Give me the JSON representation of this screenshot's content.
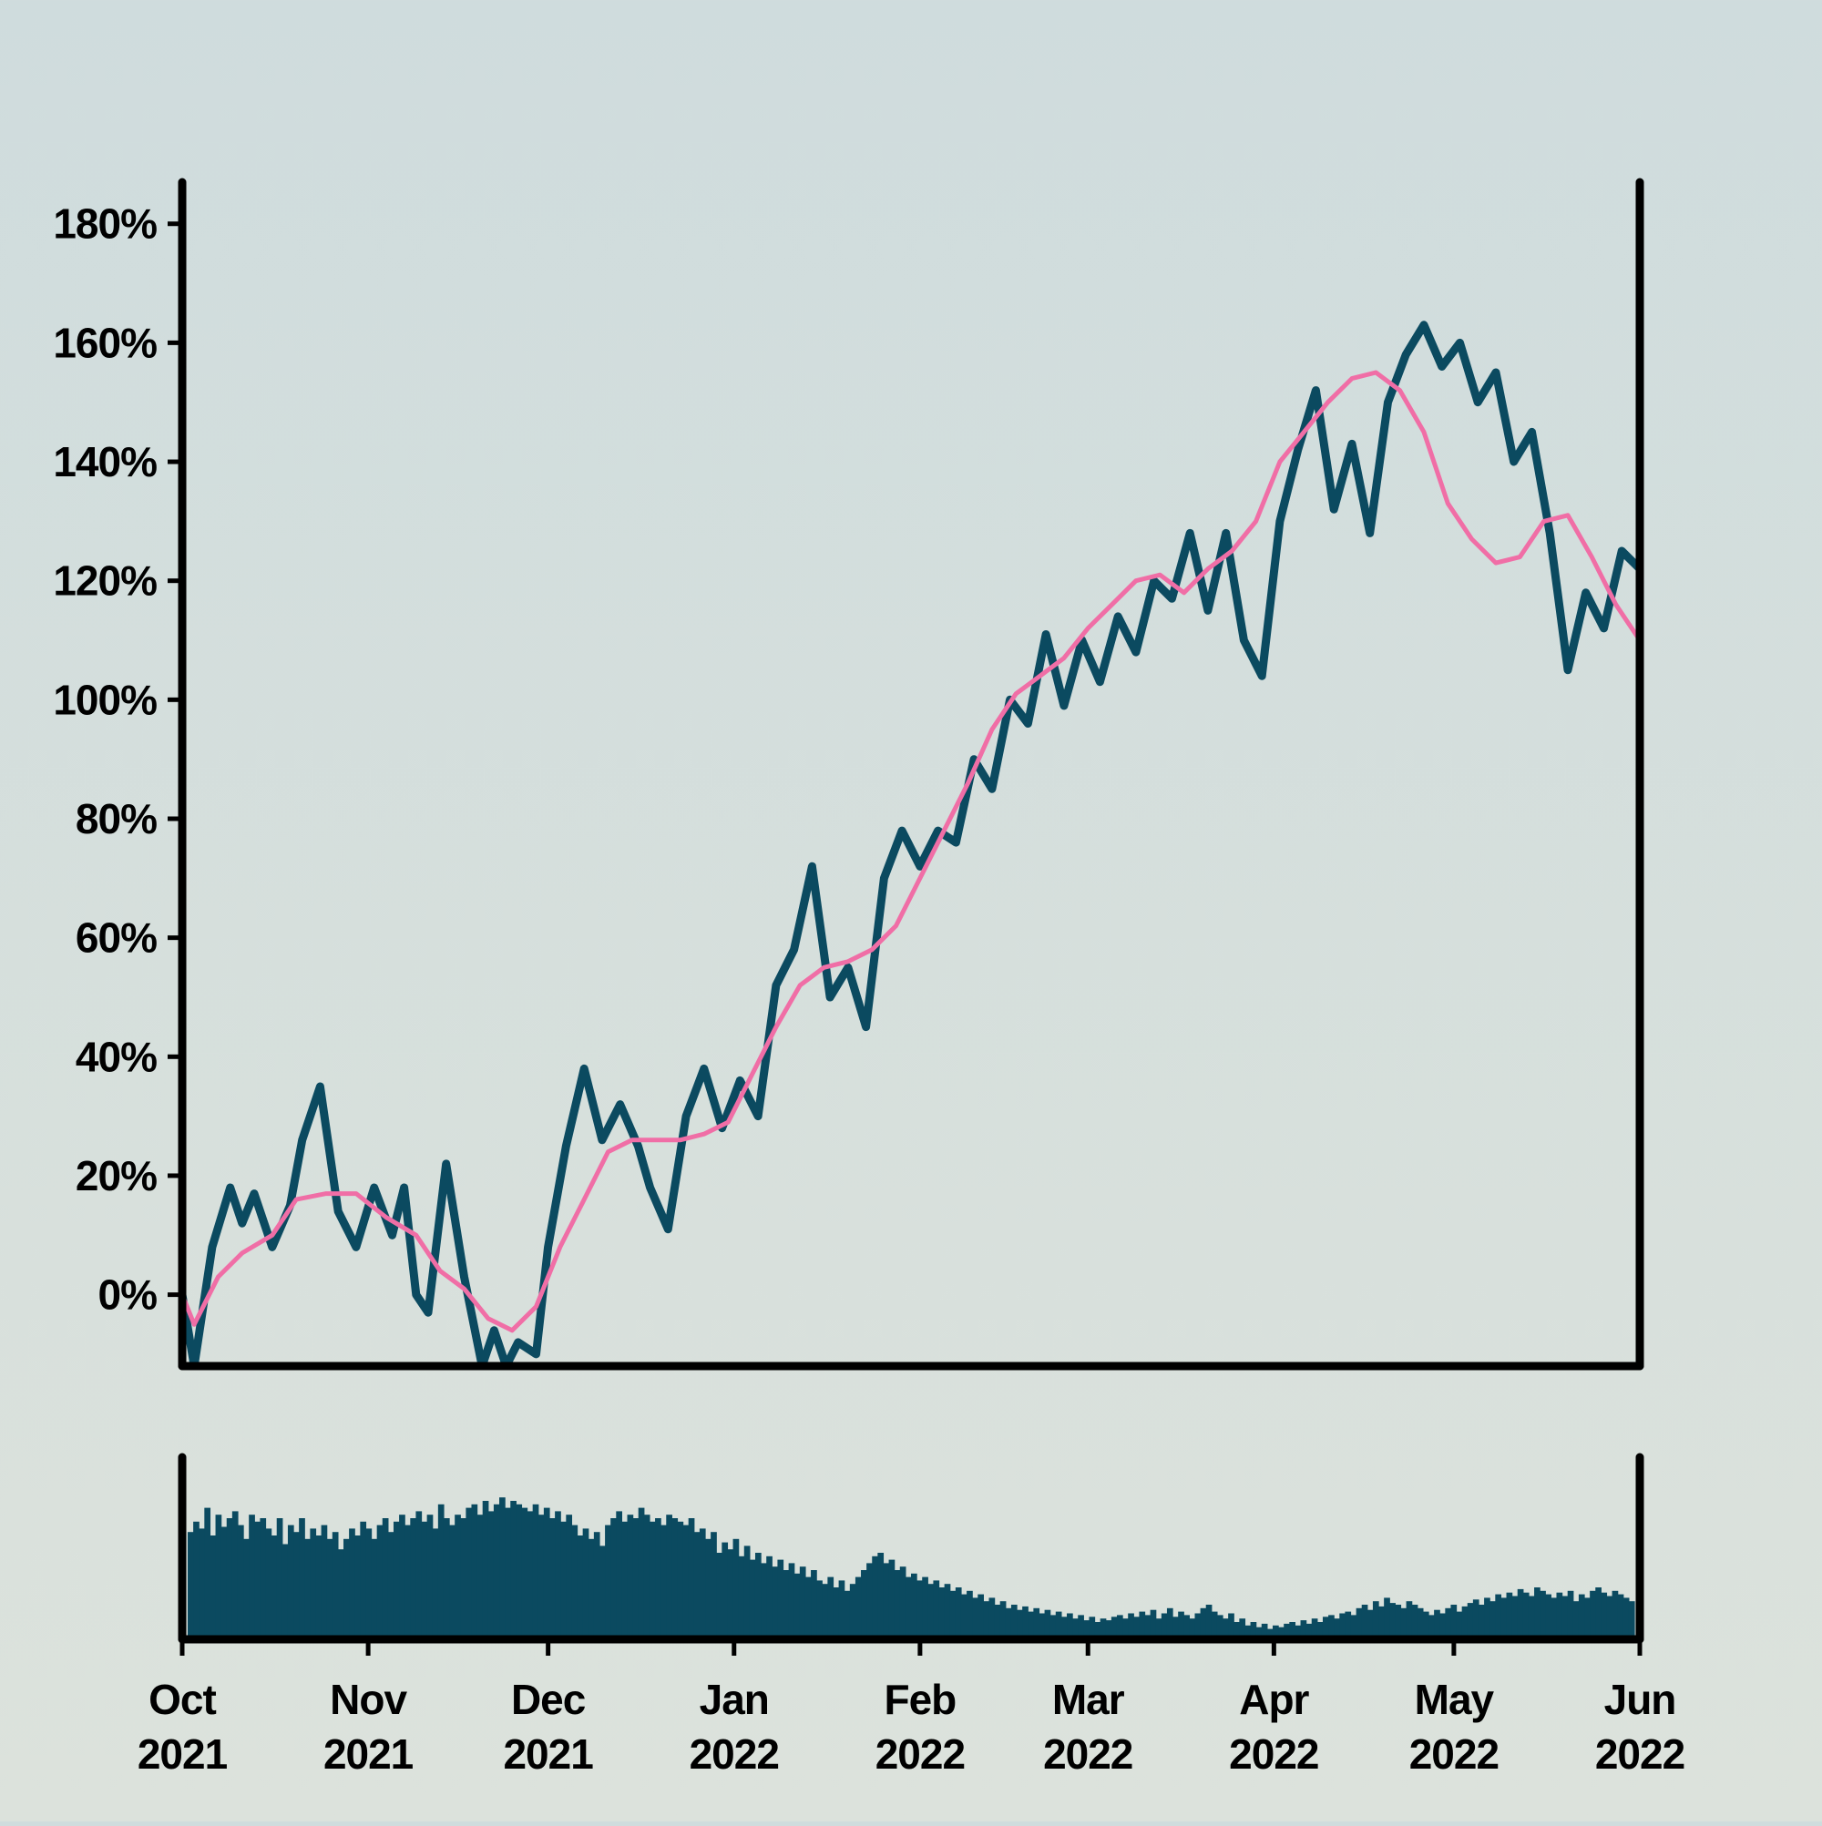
{
  "chart_data": [
    {
      "type": "line",
      "title": "",
      "xlabel": "",
      "ylabel": "",
      "x_range": [
        "2021-10-01",
        "2022-06-01"
      ],
      "ylim": [
        -12,
        187
      ],
      "y_ticks": [
        0,
        20,
        40,
        60,
        80,
        100,
        120,
        140,
        160,
        180
      ],
      "y_tick_labels": [
        "0%",
        "20%",
        "40%",
        "60%",
        "80%",
        "100%",
        "120%",
        "140%",
        "160%",
        "180%"
      ],
      "grid": false,
      "legend": "none",
      "colors": {
        "price": "#0b4a60",
        "moving_average": "#f06ea6",
        "axes": "#000000"
      },
      "series": [
        {
          "points": [
            [
              "2021-10-01",
              0
            ],
            [
              "2021-10-03",
              -12
            ],
            [
              "2021-10-06",
              8
            ],
            [
              "2021-10-09",
              18
            ],
            [
              "2021-10-11",
              12
            ],
            [
              "2021-10-13",
              17
            ],
            [
              "2021-10-16",
              8
            ],
            [
              "2021-10-19",
              15
            ],
            [
              "2021-10-21",
              26
            ],
            [
              "2021-10-24",
              35
            ],
            [
              "2021-10-27",
              14
            ],
            [
              "2021-10-30",
              8
            ],
            [
              "2021-11-02",
              18
            ],
            [
              "2021-11-05",
              10
            ],
            [
              "2021-11-07",
              18
            ],
            [
              "2021-11-09",
              0
            ],
            [
              "2021-11-11",
              -3
            ],
            [
              "2021-11-14",
              22
            ],
            [
              "2021-11-17",
              3
            ],
            [
              "2021-11-20",
              -12
            ],
            [
              "2021-11-22",
              -6
            ],
            [
              "2021-11-24",
              -12
            ],
            [
              "2021-11-26",
              -8
            ],
            [
              "2021-11-29",
              -10
            ],
            [
              "2021-12-01",
              8
            ],
            [
              "2021-12-04",
              25
            ],
            [
              "2021-12-07",
              38
            ],
            [
              "2021-12-10",
              26
            ],
            [
              "2021-12-13",
              32
            ],
            [
              "2021-12-16",
              25
            ],
            [
              "2021-12-18",
              18
            ],
            [
              "2021-12-21",
              11
            ],
            [
              "2021-12-24",
              30
            ],
            [
              "2021-12-27",
              38
            ],
            [
              "2021-12-30",
              28
            ],
            [
              "2022-01-02",
              36
            ],
            [
              "2022-01-05",
              30
            ],
            [
              "2022-01-08",
              52
            ],
            [
              "2022-01-11",
              58
            ],
            [
              "2022-01-14",
              72
            ],
            [
              "2022-01-17",
              50
            ],
            [
              "2022-01-20",
              55
            ],
            [
              "2022-01-23",
              45
            ],
            [
              "2022-01-26",
              70
            ],
            [
              "2022-01-29",
              78
            ],
            [
              "2022-02-01",
              72
            ],
            [
              "2022-02-04",
              78
            ],
            [
              "2022-02-07",
              76
            ],
            [
              "2022-02-10",
              90
            ],
            [
              "2022-02-13",
              85
            ],
            [
              "2022-02-16",
              100
            ],
            [
              "2022-02-19",
              96
            ],
            [
              "2022-02-22",
              111
            ],
            [
              "2022-02-25",
              99
            ],
            [
              "2022-02-28",
              110
            ],
            [
              "2022-03-03",
              103
            ],
            [
              "2022-03-06",
              114
            ],
            [
              "2022-03-09",
              108
            ],
            [
              "2022-03-12",
              120
            ],
            [
              "2022-03-15",
              117
            ],
            [
              "2022-03-18",
              128
            ],
            [
              "2022-03-21",
              115
            ],
            [
              "2022-03-24",
              128
            ],
            [
              "2022-03-27",
              110
            ],
            [
              "2022-03-30",
              104
            ],
            [
              "2022-04-02",
              130
            ],
            [
              "2022-04-05",
              142
            ],
            [
              "2022-04-08",
              152
            ],
            [
              "2022-04-11",
              132
            ],
            [
              "2022-04-14",
              143
            ],
            [
              "2022-04-17",
              128
            ],
            [
              "2022-04-20",
              150
            ],
            [
              "2022-04-23",
              158
            ],
            [
              "2022-04-26",
              163
            ],
            [
              "2022-04-29",
              156
            ],
            [
              "2022-05-02",
              160
            ],
            [
              "2022-05-05",
              150
            ],
            [
              "2022-05-08",
              155
            ],
            [
              "2022-05-11",
              140
            ],
            [
              "2022-05-14",
              145
            ],
            [
              "2022-05-17",
              128
            ],
            [
              "2022-05-20",
              105
            ],
            [
              "2022-05-23",
              118
            ],
            [
              "2022-05-26",
              112
            ],
            [
              "2022-05-29",
              125
            ],
            [
              "2022-06-01",
              122
            ]
          ]
        },
        {
          "points": [
            [
              "2021-10-01",
              0
            ],
            [
              "2021-10-03",
              -5
            ],
            [
              "2021-10-07",
              3
            ],
            [
              "2021-10-11",
              7
            ],
            [
              "2021-10-16",
              10
            ],
            [
              "2021-10-20",
              16
            ],
            [
              "2021-10-25",
              17
            ],
            [
              "2021-10-30",
              17
            ],
            [
              "2021-11-04",
              13
            ],
            [
              "2021-11-09",
              10
            ],
            [
              "2021-11-13",
              4
            ],
            [
              "2021-11-17",
              1
            ],
            [
              "2021-11-21",
              -4
            ],
            [
              "2021-11-25",
              -6
            ],
            [
              "2021-11-29",
              -2
            ],
            [
              "2021-12-03",
              8
            ],
            [
              "2021-12-07",
              16
            ],
            [
              "2021-12-11",
              24
            ],
            [
              "2021-12-15",
              26
            ],
            [
              "2021-12-19",
              26
            ],
            [
              "2021-12-23",
              26
            ],
            [
              "2021-12-27",
              27
            ],
            [
              "2021-12-31",
              29
            ],
            [
              "2022-01-04",
              37
            ],
            [
              "2022-01-08",
              45
            ],
            [
              "2022-01-12",
              52
            ],
            [
              "2022-01-16",
              55
            ],
            [
              "2022-01-20",
              56
            ],
            [
              "2022-01-24",
              58
            ],
            [
              "2022-01-28",
              62
            ],
            [
              "2022-02-01",
              70
            ],
            [
              "2022-02-05",
              78
            ],
            [
              "2022-02-09",
              86
            ],
            [
              "2022-02-13",
              95
            ],
            [
              "2022-02-17",
              101
            ],
            [
              "2022-02-21",
              104
            ],
            [
              "2022-02-25",
              107
            ],
            [
              "2022-03-01",
              112
            ],
            [
              "2022-03-05",
              116
            ],
            [
              "2022-03-09",
              120
            ],
            [
              "2022-03-13",
              121
            ],
            [
              "2022-03-17",
              118
            ],
            [
              "2022-03-21",
              122
            ],
            [
              "2022-03-25",
              125
            ],
            [
              "2022-03-29",
              130
            ],
            [
              "2022-04-02",
              140
            ],
            [
              "2022-04-06",
              145
            ],
            [
              "2022-04-10",
              150
            ],
            [
              "2022-04-14",
              154
            ],
            [
              "2022-04-18",
              155
            ],
            [
              "2022-04-22",
              152
            ],
            [
              "2022-04-26",
              145
            ],
            [
              "2022-04-30",
              133
            ],
            [
              "2022-05-04",
              127
            ],
            [
              "2022-05-08",
              123
            ],
            [
              "2022-05-12",
              124
            ],
            [
              "2022-05-16",
              130
            ],
            [
              "2022-05-20",
              131
            ],
            [
              "2022-05-24",
              124
            ],
            [
              "2022-05-28",
              116
            ],
            [
              "2022-06-01",
              110
            ]
          ]
        }
      ]
    },
    {
      "type": "bar",
      "title": "",
      "xlabel": "",
      "ylabel": "",
      "x_range": [
        "2021-10-01",
        "2022-06-01"
      ],
      "x_ticks": [
        "2021-10-01",
        "2021-11-01",
        "2021-12-01",
        "2022-01-01",
        "2022-02-01",
        "2022-03-01",
        "2022-04-01",
        "2022-05-01",
        "2022-06-01"
      ],
      "x_tick_labels": [
        [
          "Oct",
          "2021"
        ],
        [
          "Nov",
          "2021"
        ],
        [
          "Dec",
          "2021"
        ],
        [
          "Jan",
          "2022"
        ],
        [
          "Feb",
          "2022"
        ],
        [
          "Mar",
          "2022"
        ],
        [
          "Apr",
          "2022"
        ],
        [
          "May",
          "2022"
        ],
        [
          "Jun",
          "2022"
        ]
      ],
      "ylim": [
        0,
        100
      ],
      "y_axis_labels": "none",
      "grid": false,
      "colors": {
        "bars": "#0b4a60"
      },
      "series": [
        {
          "values": [
            62,
            68,
            64,
            76,
            60,
            72,
            65,
            70,
            74,
            66,
            58,
            72,
            68,
            70,
            64,
            60,
            70,
            55,
            66,
            62,
            70,
            58,
            64,
            60,
            66,
            58,
            62,
            52,
            58,
            64,
            60,
            68,
            64,
            58,
            66,
            70,
            62,
            68,
            72,
            66,
            70,
            74,
            68,
            72,
            64,
            78,
            70,
            66,
            72,
            70,
            76,
            78,
            72,
            80,
            74,
            78,
            82,
            76,
            80,
            78,
            76,
            74,
            78,
            72,
            76,
            70,
            74,
            68,
            72,
            66,
            60,
            64,
            58,
            62,
            54,
            66,
            70,
            74,
            68,
            72,
            70,
            76,
            72,
            68,
            70,
            66,
            72,
            70,
            68,
            66,
            70,
            62,
            64,
            58,
            62,
            50,
            56,
            52,
            58,
            48,
            54,
            46,
            50,
            44,
            48,
            42,
            46,
            40,
            44,
            38,
            42,
            36,
            40,
            34,
            32,
            36,
            30,
            34,
            28,
            32,
            36,
            40,
            44,
            48,
            50,
            44,
            46,
            40,
            42,
            36,
            38,
            34,
            36,
            32,
            34,
            30,
            32,
            28,
            30,
            26,
            28,
            24,
            26,
            22,
            24,
            20,
            22,
            18,
            20,
            17,
            19,
            16,
            18,
            15,
            17,
            14,
            16,
            13,
            15,
            12,
            14,
            11,
            13,
            10,
            12,
            11,
            13,
            14,
            12,
            15,
            13,
            16,
            14,
            17,
            12,
            15,
            18,
            13,
            16,
            14,
            12,
            15,
            18,
            20,
            16,
            14,
            12,
            15,
            10,
            12,
            8,
            10,
            7,
            9,
            6,
            8,
            7,
            9,
            10,
            8,
            11,
            9,
            12,
            10,
            13,
            14,
            12,
            15,
            16,
            14,
            18,
            20,
            17,
            22,
            19,
            24,
            21,
            20,
            18,
            22,
            20,
            18,
            16,
            14,
            17,
            15,
            18,
            20,
            16,
            19,
            21,
            23,
            20,
            24,
            22,
            26,
            24,
            27,
            25,
            29,
            27,
            25,
            30,
            28,
            26,
            24,
            27,
            25,
            28,
            22,
            26,
            24,
            28,
            30,
            27,
            25,
            28,
            26,
            24,
            22
          ]
        }
      ]
    }
  ]
}
